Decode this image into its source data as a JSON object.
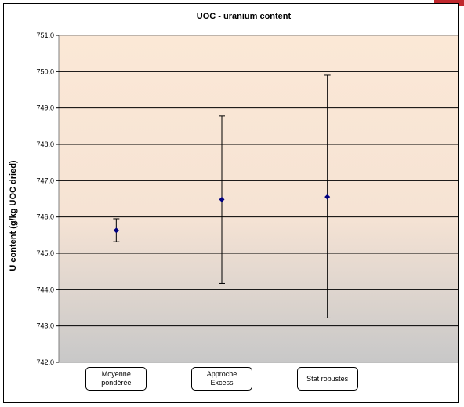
{
  "corner_color": "#c0282d",
  "chart_data": {
    "type": "scatter",
    "title": "UOC - uranium content",
    "xlabel": "",
    "ylabel": "U content (g/kg UOC dried)",
    "ylim": [
      742.0,
      751.0
    ],
    "ytick_step": 1.0,
    "ytick_labels": [
      "742,0",
      "743,0",
      "744,0",
      "745,0",
      "746,0",
      "747,0",
      "748,0",
      "749,0",
      "750,0",
      "751,0"
    ],
    "grid": true,
    "legend": "none",
    "marker_color": "#000080",
    "background_gradient": [
      "#fbe8d6",
      "#c8c8c8"
    ],
    "categories": [
      "Moyenne\npondérée",
      "Approche\nExcess",
      "Stat robustes"
    ],
    "points": [
      {
        "value": 745.63,
        "err_low": 745.32,
        "err_high": 745.95
      },
      {
        "value": 746.48,
        "err_low": 744.17,
        "err_high": 748.78
      },
      {
        "value": 746.55,
        "err_low": 743.22,
        "err_high": 749.9
      }
    ]
  }
}
